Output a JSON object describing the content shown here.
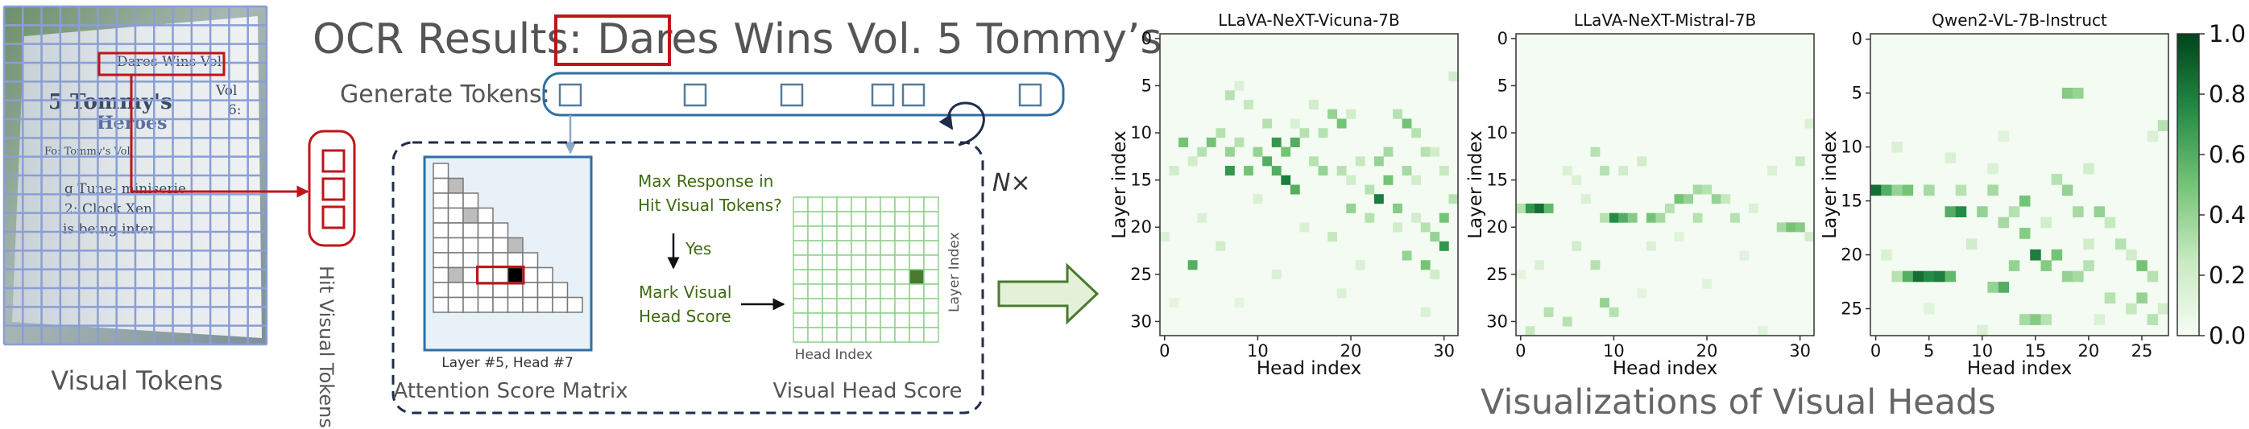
{
  "pipeline": {
    "ocr_prefix": "OCR Results:",
    "ocr_highlight": "Dares",
    "ocr_rest": "Wins Vol. 5 Tommy’s ...",
    "generate_tokens_label": "Generate Tokens:",
    "visual_tokens_label": "Visual Tokens",
    "hit_visual_tokens_label": "Hit Visual Tokens",
    "n_times": "N×",
    "attention_label": "Attention Score Matrix",
    "layer_head_caption": "Layer #5, Head #7",
    "question": [
      "Max Response in",
      "Hit Visual Tokens?"
    ],
    "yes": "Yes",
    "mark": [
      "Mark Visual",
      "Head Score"
    ],
    "head_index_label": "Head Index",
    "layer_index_label": "Layer Index",
    "visual_head_score_label": "Visual Head Score",
    "visualizations_title": "Visualizations of Visual Heads",
    "doc_text": [
      "Dares Wins Vol.",
      "5 Tommy's",
      "Heroes",
      "Vol",
      "6:",
      "Fo: Tommy's Vol",
      "g Tune- miniserie",
      "2: Clock Xen",
      "is being inter"
    ]
  },
  "chart_data": [
    {
      "type": "heatmap",
      "title": "LLaVA-NeXT-Vicuna-7B",
      "xlabel": "Head index",
      "ylabel": "Layer index",
      "xticks": [
        0,
        10,
        20,
        30
      ],
      "yticks": [
        0,
        5,
        10,
        15,
        20,
        25,
        30
      ],
      "rows": 32,
      "cols": 32,
      "cells": [
        [
          7,
          6,
          0.3
        ],
        [
          8,
          5,
          0.15
        ],
        [
          9,
          7,
          0.25
        ],
        [
          11,
          9,
          0.3
        ],
        [
          6,
          10,
          0.3
        ],
        [
          5,
          11,
          0.5
        ],
        [
          8,
          11,
          0.3
        ],
        [
          12,
          11,
          0.7
        ],
        [
          13,
          12,
          0.5
        ],
        [
          14,
          11,
          0.6
        ],
        [
          15,
          10,
          0.3
        ],
        [
          7,
          12,
          0.4
        ],
        [
          10,
          12,
          0.4
        ],
        [
          2,
          11,
          0.5
        ],
        [
          4,
          12,
          0.3
        ],
        [
          3,
          13,
          0.2
        ],
        [
          1,
          14,
          0.2
        ],
        [
          7,
          14,
          0.7
        ],
        [
          9,
          14,
          0.5
        ],
        [
          11,
          13,
          0.6
        ],
        [
          12,
          14,
          0.6
        ],
        [
          13,
          15,
          0.8
        ],
        [
          16,
          13,
          0.3
        ],
        [
          17,
          14,
          0.4
        ],
        [
          14,
          16,
          0.6
        ],
        [
          19,
          14,
          0.3
        ],
        [
          23,
          13,
          0.4
        ],
        [
          24,
          15,
          0.5
        ],
        [
          22,
          16,
          0.3
        ],
        [
          26,
          14,
          0.35
        ],
        [
          27,
          15,
          0.2
        ],
        [
          28,
          12,
          0.3
        ],
        [
          23,
          17,
          0.8
        ],
        [
          25,
          18,
          0.45
        ],
        [
          20,
          18,
          0.4
        ],
        [
          18,
          21,
          0.25
        ],
        [
          22,
          19,
          0.3
        ],
        [
          27,
          19,
          0.2
        ],
        [
          28,
          20,
          0.3
        ],
        [
          29,
          21,
          0.4
        ],
        [
          30,
          22,
          0.7
        ],
        [
          30,
          19,
          0.5
        ],
        [
          31,
          17,
          0.3
        ],
        [
          26,
          23,
          0.4
        ],
        [
          28,
          24,
          0.5
        ],
        [
          29,
          25,
          0.2
        ],
        [
          3,
          24,
          0.6
        ],
        [
          0,
          21,
          0.15
        ],
        [
          18,
          8,
          0.4
        ],
        [
          19,
          9,
          0.5
        ],
        [
          17,
          10,
          0.3
        ],
        [
          20,
          8,
          0.2
        ],
        [
          16,
          7,
          0.2
        ],
        [
          25,
          8,
          0.3
        ],
        [
          26,
          9,
          0.5
        ],
        [
          27,
          10,
          0.3
        ],
        [
          29,
          12,
          0.2
        ],
        [
          31,
          4,
          0.2
        ],
        [
          24,
          12,
          0.35
        ],
        [
          20,
          15,
          0.2
        ],
        [
          25,
          20,
          0.2
        ],
        [
          14,
          9,
          0.15
        ],
        [
          21,
          13,
          0.25
        ],
        [
          6,
          22,
          0.2
        ],
        [
          12,
          25,
          0.15
        ],
        [
          19,
          27,
          0.15
        ],
        [
          28,
          29,
          0.15
        ],
        [
          4,
          19,
          0.15
        ],
        [
          10,
          17,
          0.15
        ],
        [
          15,
          20,
          0.15
        ],
        [
          21,
          24,
          0.15
        ],
        [
          1,
          28,
          0.1
        ],
        [
          8,
          28,
          0.1
        ],
        [
          30,
          14,
          0.25
        ]
      ]
    },
    {
      "type": "heatmap",
      "title": "LLaVA-NeXT-Mistral-7B",
      "xlabel": "Head index",
      "ylabel": "Layer index",
      "xticks": [
        0,
        10,
        20,
        30
      ],
      "yticks": [
        0,
        5,
        10,
        15,
        20,
        25,
        30
      ],
      "rows": 32,
      "cols": 32,
      "cells": [
        [
          1,
          18,
          0.7
        ],
        [
          2,
          18,
          0.85
        ],
        [
          3,
          18,
          0.55
        ],
        [
          0,
          18,
          0.3
        ],
        [
          8,
          12,
          0.3
        ],
        [
          9,
          14,
          0.3
        ],
        [
          10,
          19,
          0.75
        ],
        [
          11,
          19,
          0.6
        ],
        [
          12,
          19,
          0.45
        ],
        [
          9,
          19,
          0.3
        ],
        [
          14,
          19,
          0.5
        ],
        [
          15,
          19,
          0.35
        ],
        [
          16,
          18,
          0.3
        ],
        [
          17,
          17,
          0.5
        ],
        [
          18,
          17,
          0.4
        ],
        [
          19,
          16,
          0.35
        ],
        [
          20,
          16,
          0.3
        ],
        [
          21,
          17,
          0.4
        ],
        [
          22,
          17,
          0.25
        ],
        [
          19,
          19,
          0.3
        ],
        [
          23,
          19,
          0.3
        ],
        [
          28,
          20,
          0.35
        ],
        [
          29,
          20,
          0.5
        ],
        [
          30,
          20,
          0.45
        ],
        [
          31,
          21,
          0.2
        ],
        [
          30,
          13,
          0.25
        ],
        [
          13,
          13,
          0.2
        ],
        [
          11,
          14,
          0.2
        ],
        [
          6,
          22,
          0.2
        ],
        [
          8,
          24,
          0.3
        ],
        [
          9,
          28,
          0.4
        ],
        [
          10,
          29,
          0.3
        ],
        [
          3,
          29,
          0.3
        ],
        [
          5,
          30,
          0.3
        ],
        [
          1,
          31,
          0.25
        ],
        [
          5,
          14,
          0.15
        ],
        [
          14,
          22,
          0.15
        ],
        [
          6,
          15,
          0.15
        ],
        [
          27,
          14,
          0.15
        ],
        [
          2,
          24,
          0.15
        ],
        [
          20,
          26,
          0.12
        ],
        [
          7,
          17,
          0.15
        ],
        [
          13,
          27,
          0.1
        ],
        [
          24,
          23,
          0.12
        ],
        [
          17,
          21,
          0.12
        ],
        [
          25,
          18,
          0.15
        ],
        [
          26,
          31,
          0.12
        ],
        [
          0,
          25,
          0.1
        ],
        [
          31,
          9,
          0.15
        ]
      ]
    },
    {
      "type": "heatmap",
      "title": "Qwen2-VL-7B-Instruct",
      "xlabel": "Head index",
      "ylabel": "Layer index",
      "xticks": [
        0,
        5,
        10,
        15,
        20,
        25
      ],
      "yticks": [
        0,
        5,
        10,
        15,
        20,
        25
      ],
      "rows": 28,
      "cols": 28,
      "cells": [
        [
          0,
          14,
          0.85
        ],
        [
          1,
          14,
          0.6
        ],
        [
          2,
          14,
          0.4
        ],
        [
          3,
          14,
          0.5
        ],
        [
          5,
          14,
          0.35
        ],
        [
          8,
          14,
          0.3
        ],
        [
          11,
          14,
          0.35
        ],
        [
          3,
          22,
          0.6
        ],
        [
          4,
          22,
          0.85
        ],
        [
          5,
          22,
          0.75
        ],
        [
          6,
          22,
          0.8
        ],
        [
          7,
          22,
          0.55
        ],
        [
          2,
          22,
          0.3
        ],
        [
          7,
          16,
          0.6
        ],
        [
          8,
          16,
          0.75
        ],
        [
          10,
          16,
          0.4
        ],
        [
          12,
          17,
          0.35
        ],
        [
          13,
          16,
          0.3
        ],
        [
          14,
          15,
          0.5
        ],
        [
          14,
          18,
          0.45
        ],
        [
          15,
          20,
          0.8
        ],
        [
          13,
          21,
          0.4
        ],
        [
          12,
          23,
          0.6
        ],
        [
          11,
          23,
          0.4
        ],
        [
          16,
          21,
          0.45
        ],
        [
          17,
          20,
          0.5
        ],
        [
          18,
          22,
          0.4
        ],
        [
          19,
          22,
          0.35
        ],
        [
          20,
          21,
          0.3
        ],
        [
          17,
          13,
          0.3
        ],
        [
          18,
          14,
          0.4
        ],
        [
          19,
          16,
          0.35
        ],
        [
          21,
          16,
          0.4
        ],
        [
          22,
          17,
          0.25
        ],
        [
          23,
          19,
          0.3
        ],
        [
          24,
          20,
          0.2
        ],
        [
          25,
          21,
          0.5
        ],
        [
          26,
          22,
          0.3
        ],
        [
          25,
          24,
          0.4
        ],
        [
          24,
          25,
          0.25
        ],
        [
          26,
          26,
          0.3
        ],
        [
          27,
          25,
          0.2
        ],
        [
          14,
          26,
          0.35
        ],
        [
          15,
          26,
          0.45
        ],
        [
          16,
          26,
          0.3
        ],
        [
          18,
          5,
          0.45
        ],
        [
          19,
          5,
          0.4
        ],
        [
          26,
          9,
          0.15
        ],
        [
          27,
          8,
          0.3
        ],
        [
          2,
          10,
          0.15
        ],
        [
          7,
          11,
          0.15
        ],
        [
          20,
          12,
          0.2
        ],
        [
          11,
          12,
          0.15
        ],
        [
          9,
          19,
          0.2
        ],
        [
          1,
          20,
          0.15
        ],
        [
          5,
          25,
          0.12
        ],
        [
          21,
          26,
          0.15
        ],
        [
          22,
          24,
          0.3
        ],
        [
          10,
          27,
          0.15
        ],
        [
          16,
          17,
          0.2
        ],
        [
          20,
          19,
          0.2
        ],
        [
          12,
          9,
          0.12
        ]
      ]
    }
  ],
  "colorbar": {
    "ticks": [
      0.0,
      0.2,
      0.4,
      0.6,
      0.8,
      1.0
    ],
    "tick_labels": [
      "0.0",
      "0.2",
      "0.4",
      "0.6",
      "0.8",
      "1.0"
    ],
    "colors": [
      "#f7fcf5",
      "#c7e9c0",
      "#74c476",
      "#238b45",
      "#00441b"
    ]
  },
  "colors": {
    "title_gray": "#555555",
    "highlight_red": "#c0141a",
    "box_blue": "#2f6ea5",
    "dashed_navy": "#1f2d4d",
    "olive_text": "#3d6b10",
    "grid_green": "#8fd08a",
    "cell_green": "#4a7a2e"
  }
}
